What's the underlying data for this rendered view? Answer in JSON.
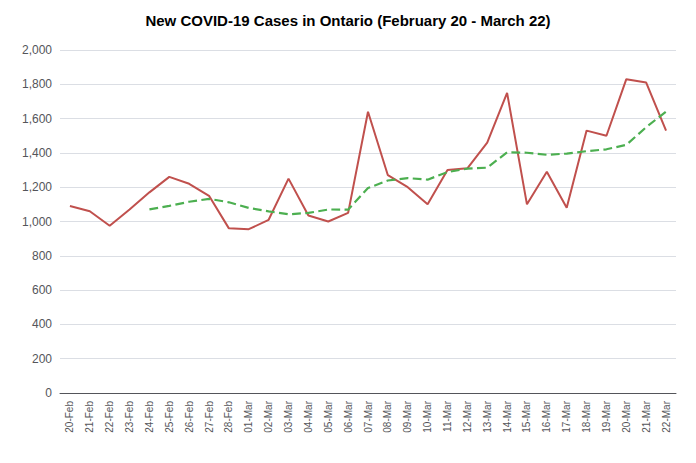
{
  "chart_data": {
    "type": "line",
    "title": "New COVID-19 Cases in Ontario (February 20 - March 22)",
    "categories": [
      "20-Feb",
      "21-Feb",
      "22-Feb",
      "23-Feb",
      "24-Feb",
      "25-Feb",
      "26-Feb",
      "27-Feb",
      "28-Feb",
      "01-Mar",
      "02-Mar",
      "03-Mar",
      "04-Mar",
      "05-Mar",
      "06-Mar",
      "07-Mar",
      "08-Mar",
      "09-Mar",
      "10-Mar",
      "11-Mar",
      "12-Mar",
      "13-Mar",
      "14-Mar",
      "15-Mar",
      "16-Mar",
      "17-Mar",
      "18-Mar",
      "19-Mar",
      "20-Mar",
      "21-Mar",
      "22-Mar"
    ],
    "series": [
      {
        "color": "#c0504d",
        "line_style": "solid",
        "values": [
          1090,
          1060,
          975,
          1070,
          1170,
          1260,
          1220,
          1150,
          960,
          955,
          1010,
          1250,
          1035,
          1000,
          1050,
          1640,
          1270,
          1200,
          1100,
          1300,
          1310,
          1460,
          1750,
          1100,
          1290,
          1080,
          1530,
          1500,
          1830,
          1810,
          1530
        ]
      },
      {
        "color": "#4caf50",
        "line_style": "dashed",
        "values": [
          null,
          null,
          null,
          null,
          1071,
          1091,
          1115,
          1132,
          1112,
          1079,
          1059,
          1042,
          1050,
          1070,
          1069,
          1195,
          1239,
          1253,
          1244,
          1288,
          1308,
          1314,
          1403,
          1401,
          1389,
          1396,
          1410,
          1421,
          1447,
          1550,
          1641
        ]
      }
    ],
    "ylim": [
      0,
      2000
    ],
    "yticks": [
      0,
      200,
      400,
      600,
      800,
      {
        "value": 1000,
        "label": "1,000"
      },
      {
        "value": 1200,
        "label": "1,200"
      },
      {
        "value": 1400,
        "label": "1,400"
      },
      {
        "value": 1600,
        "label": "1,600"
      },
      {
        "value": 1800,
        "label": "1,800"
      },
      {
        "value": 2000,
        "label": "2,000"
      }
    ],
    "grid": true
  }
}
